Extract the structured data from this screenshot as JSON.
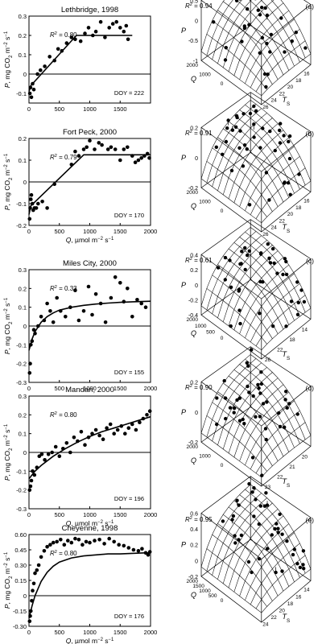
{
  "chart_data": [
    {
      "type": "scatter",
      "title": "Lethbridge, 1998",
      "ylabel": "P, mg CO2 m-2 s-1",
      "xlabel": "",
      "r2": "= 0.80",
      "doy": "DOY = 222",
      "xlim": [
        0,
        2000
      ],
      "ylim": [
        -0.15,
        0.3
      ],
      "xticks": [
        "0",
        "500",
        "1000",
        "1500"
      ],
      "xtick_values": [
        0,
        500,
        1000,
        1500
      ],
      "yticks": [
        "-0.1",
        "0",
        "0.1",
        "0.2",
        "0.3"
      ],
      "ytick_values": [
        -0.1,
        0,
        0.1,
        0.2,
        0.3
      ],
      "fit": {
        "x": [
          0,
          30,
          780,
          1700
        ],
        "y": [
          -0.09,
          -0.06,
          0.2,
          0.2
        ]
      },
      "points": {
        "x": [
          15,
          25,
          40,
          60,
          80,
          140,
          190,
          260,
          340,
          420,
          480,
          540,
          620,
          700,
          760,
          850,
          920,
          980,
          1050,
          1100,
          1180,
          1250,
          1320,
          1380,
          1440,
          1500,
          1560,
          1600,
          1630
        ],
        "y": [
          -0.1,
          -0.07,
          -0.12,
          -0.05,
          -0.08,
          0.0,
          0.02,
          0.04,
          0.09,
          0.07,
          0.13,
          0.12,
          0.16,
          0.19,
          0.18,
          0.17,
          0.21,
          0.24,
          0.2,
          0.22,
          0.27,
          0.19,
          0.24,
          0.26,
          0.27,
          0.24,
          0.22,
          0.25,
          0.18
        ]
      }
    },
    {
      "type": "scatter",
      "title": "Fort Peck, 2000",
      "ylabel": "P, mg CO2 m-2 s-1",
      "xlabel": "Q, µmol m-2 s-1",
      "r2": "= 0.79",
      "doy": "DOY = 170",
      "xlim": [
        0,
        2000
      ],
      "ylim": [
        -0.2,
        0.2
      ],
      "xticks": [
        "0",
        "500",
        "1000",
        "1500",
        "2000"
      ],
      "xtick_values": [
        0,
        500,
        1000,
        1500,
        2000
      ],
      "yticks": [
        "-0.2",
        "-0.1",
        "0",
        "0.1",
        "0.2"
      ],
      "ytick_values": [
        -0.2,
        -0.1,
        0,
        0.1,
        0.2
      ],
      "fit": {
        "x": [
          0,
          30,
          900,
          2000
        ],
        "y": [
          -0.15,
          -0.11,
          0.125,
          0.125
        ]
      },
      "points": {
        "x": [
          10,
          20,
          30,
          40,
          55,
          70,
          90,
          120,
          150,
          220,
          300,
          420,
          700,
          760,
          820,
          900,
          950,
          1000,
          1080,
          1150,
          1200,
          1300,
          1350,
          1420,
          1500,
          1560,
          1620,
          1700,
          1750,
          1800,
          1850,
          1900,
          1950,
          1980
        ],
        "y": [
          -0.17,
          -0.12,
          -0.08,
          -0.06,
          -0.1,
          -0.13,
          -0.12,
          -0.12,
          -0.1,
          -0.09,
          -0.12,
          -0.01,
          0.08,
          0.14,
          0.12,
          0.15,
          0.16,
          0.19,
          0.15,
          0.18,
          0.17,
          0.15,
          0.16,
          0.15,
          0.1,
          0.15,
          0.16,
          0.12,
          0.09,
          0.1,
          0.11,
          0.12,
          0.13,
          0.11
        ]
      }
    },
    {
      "type": "scatter",
      "title": "Miles City, 2000",
      "ylabel": "P, mg CO2 m-2 s-1",
      "xlabel": "",
      "r2": "= 0.33",
      "doy": "DOY = 155",
      "xlim": [
        0,
        2000
      ],
      "ylim": [
        -0.3,
        0.3
      ],
      "xticks": [
        "0",
        "500",
        "1000",
        "1500",
        "2000"
      ],
      "xtick_values": [
        0,
        500,
        1000,
        1500,
        2000
      ],
      "yticks": [
        "-0.3",
        "-0.2",
        "-0.1",
        "0",
        "0.1",
        "0.2",
        "0.3"
      ],
      "ytick_values": [
        -0.3,
        -0.2,
        -0.1,
        0,
        0.1,
        0.2,
        0.3
      ],
      "fit": {
        "x": [
          0,
          50,
          100,
          200,
          300,
          400,
          500,
          700,
          900,
          1100,
          1300,
          1500,
          1700,
          1900,
          2000
        ],
        "y": [
          -0.13,
          -0.07,
          -0.03,
          0.02,
          0.05,
          0.07,
          0.085,
          0.1,
          0.11,
          0.117,
          0.122,
          0.126,
          0.129,
          0.131,
          0.132
        ]
      },
      "points": {
        "x": [
          10,
          20,
          30,
          50,
          80,
          100,
          150,
          200,
          250,
          300,
          350,
          400,
          460,
          520,
          600,
          680,
          760,
          820,
          900,
          980,
          1040,
          1100,
          1180,
          1260,
          1350,
          1420,
          1500,
          1560,
          1620,
          1700,
          1780,
          1850,
          1920
        ],
        "y": [
          -0.25,
          -0.2,
          -0.1,
          -0.08,
          -0.02,
          -0.04,
          0.0,
          0.05,
          0.03,
          0.12,
          0.08,
          0.02,
          0.15,
          0.08,
          0.05,
          0.1,
          0.19,
          0.03,
          0.08,
          0.21,
          0.06,
          0.17,
          0.12,
          0.02,
          0.15,
          0.26,
          0.23,
          0.13,
          0.2,
          0.05,
          0.14,
          0.12,
          0.1
        ]
      }
    },
    {
      "type": "scatter",
      "title": "Mandan, 2000",
      "ylabel": "P, mg CO2 m-2 s-1",
      "xlabel": "Q, µmol m-2 s-1",
      "r2": "= 0.80",
      "doy": "DOY = 196",
      "xlim": [
        0,
        2000
      ],
      "ylim": [
        -0.3,
        0.3
      ],
      "xticks": [
        "0",
        "500",
        "1000",
        "1500",
        "2000"
      ],
      "xtick_values": [
        0,
        500,
        1000,
        1500,
        2000
      ],
      "yticks": [
        "-0.3",
        "-0.2",
        "-0.1",
        "0",
        "0.1",
        "0.2",
        "0.3"
      ],
      "ytick_values": [
        -0.3,
        -0.2,
        -0.1,
        0,
        0.1,
        0.2,
        0.3
      ],
      "fit": {
        "x": [
          0,
          100,
          200,
          400,
          600,
          800,
          1000,
          1200,
          1400,
          1600,
          1800,
          2000
        ],
        "y": [
          -0.14,
          -0.1,
          -0.07,
          -0.02,
          0.02,
          0.055,
          0.085,
          0.11,
          0.13,
          0.15,
          0.17,
          0.19
        ]
      },
      "points": {
        "x": [
          10,
          25,
          40,
          60,
          90,
          130,
          170,
          210,
          260,
          320,
          380,
          440,
          500,
          560,
          620,
          680,
          740,
          800,
          860,
          920,
          980,
          1040,
          1100,
          1160,
          1220,
          1280,
          1340,
          1400,
          1460,
          1520,
          1580,
          1640,
          1700,
          1760,
          1820,
          1880,
          1940,
          1990
        ],
        "y": [
          -0.2,
          -0.18,
          -0.15,
          -0.1,
          -0.12,
          -0.08,
          -0.02,
          -0.01,
          -0.04,
          -0.01,
          0.0,
          0.03,
          -0.02,
          0.02,
          0.05,
          0.0,
          0.08,
          0.06,
          0.11,
          0.04,
          0.08,
          0.1,
          0.12,
          0.09,
          0.07,
          0.13,
          0.15,
          0.1,
          0.12,
          0.14,
          0.1,
          0.13,
          0.15,
          0.12,
          0.16,
          0.18,
          0.2,
          0.22
        ]
      }
    },
    {
      "type": "scatter",
      "title": "Cheyenne, 1998",
      "ylabel": "P, mg CO2 m-2 s-1",
      "xlabel": "Q, µmol m-2 s-1",
      "r2": "= 0.80",
      "doy": "DOY = 176",
      "xlim": [
        0,
        2000
      ],
      "ylim": [
        -0.3,
        0.6
      ],
      "xticks": [
        "0",
        "500",
        "1000",
        "1500",
        "2000"
      ],
      "xtick_values": [
        0,
        500,
        1000,
        1500,
        2000
      ],
      "yticks": [
        "-0.30",
        "-0.15",
        "0",
        "0.15",
        "0.30",
        "0.45",
        "0.60"
      ],
      "ytick_values": [
        -0.3,
        -0.15,
        0,
        0.15,
        0.3,
        0.45,
        0.6
      ],
      "fit": {
        "x": [
          0,
          50,
          100,
          200,
          300,
          400,
          500,
          700,
          900,
          1100,
          1300,
          1500,
          1700,
          1900,
          2000
        ],
        "y": [
          -0.22,
          -0.1,
          0.0,
          0.14,
          0.23,
          0.29,
          0.33,
          0.37,
          0.39,
          0.4,
          0.41,
          0.41,
          0.415,
          0.42,
          0.42
        ]
      },
      "points": {
        "x": [
          10,
          20,
          30,
          45,
          60,
          80,
          100,
          130,
          160,
          200,
          250,
          300,
          350,
          400,
          460,
          520,
          580,
          640,
          700,
          760,
          820,
          880,
          940,
          1000,
          1080,
          1160,
          1240,
          1320,
          1400,
          1480,
          1560,
          1640,
          1720,
          1800,
          1860,
          1920,
          1960,
          1990
        ],
        "y": [
          -0.25,
          -0.2,
          -0.15,
          -0.05,
          0.05,
          0.12,
          0.22,
          0.25,
          0.3,
          0.38,
          0.44,
          0.48,
          0.5,
          0.52,
          0.53,
          0.55,
          0.5,
          0.54,
          0.52,
          0.56,
          0.55,
          0.5,
          0.53,
          0.52,
          0.54,
          0.55,
          0.51,
          0.56,
          0.53,
          0.5,
          0.49,
          0.47,
          0.45,
          0.44,
          0.46,
          0.42,
          0.4,
          0.43
        ]
      }
    },
    {
      "type": "scatter",
      "title": "",
      "panel_label": "(a)",
      "r2": "= 0.94",
      "zlabel": "P",
      "xlabel": "Q",
      "ylabel": "T",
      "ylabel_sub": "S",
      "zticks": [
        "0.5",
        "0",
        "-0.5",
        "-1"
      ],
      "xticks": [
        "2000",
        "1000",
        "0"
      ],
      "yticks": [
        "26",
        "24",
        "22",
        "20",
        "18",
        "16"
      ],
      "points_count": 40
    },
    {
      "type": "scatter",
      "title": "",
      "panel_label": "(b)",
      "r2": "= 0.91",
      "zlabel": "P",
      "xlabel": "Q",
      "ylabel": "T",
      "ylabel_sub": "S",
      "zticks": [
        "0.2",
        "0",
        "-0.2"
      ],
      "xticks": [
        "2000",
        "1000",
        "0"
      ],
      "yticks": [
        "26",
        "24",
        "22",
        "20",
        "18",
        "16"
      ],
      "points_count": 40
    },
    {
      "type": "scatter",
      "title": "",
      "panel_label": "(c)",
      "r2": "= 0.61",
      "zlabel": "P",
      "xlabel": "Q",
      "ylabel": "T",
      "ylabel_sub": "S",
      "zticks": [
        "0.4",
        "0.2",
        "0",
        "-0.2",
        "-0.4"
      ],
      "xticks": [
        "2000",
        "1000",
        "500",
        "0"
      ],
      "yticks": [
        "26",
        "22",
        "18",
        "14"
      ],
      "points_count": 40
    },
    {
      "type": "scatter",
      "title": "",
      "panel_label": "(d)",
      "r2": "= 0.90",
      "zlabel": "P",
      "xlabel": "Q",
      "ylabel": "T",
      "ylabel_sub": "S",
      "zticks": [
        "0.2",
        "0",
        "-0.2"
      ],
      "xticks": [
        "2000",
        "1000",
        "0"
      ],
      "yticks": [
        "23",
        "22",
        "21",
        "20"
      ],
      "points_count": 40
    },
    {
      "type": "scatter",
      "title": "",
      "panel_label": "(e)",
      "r2": "= 0.95",
      "zlabel": "P",
      "xlabel": "Q",
      "ylabel": "T",
      "ylabel_sub": "S",
      "zticks": [
        "0.6",
        "0.4",
        "0.2",
        "0",
        "-0.2"
      ],
      "xticks": [
        "2000",
        "1500",
        "1000",
        "500",
        "0"
      ],
      "yticks": [
        "24",
        "22",
        "20",
        "18",
        "16",
        "14"
      ],
      "points_count": 40
    }
  ]
}
